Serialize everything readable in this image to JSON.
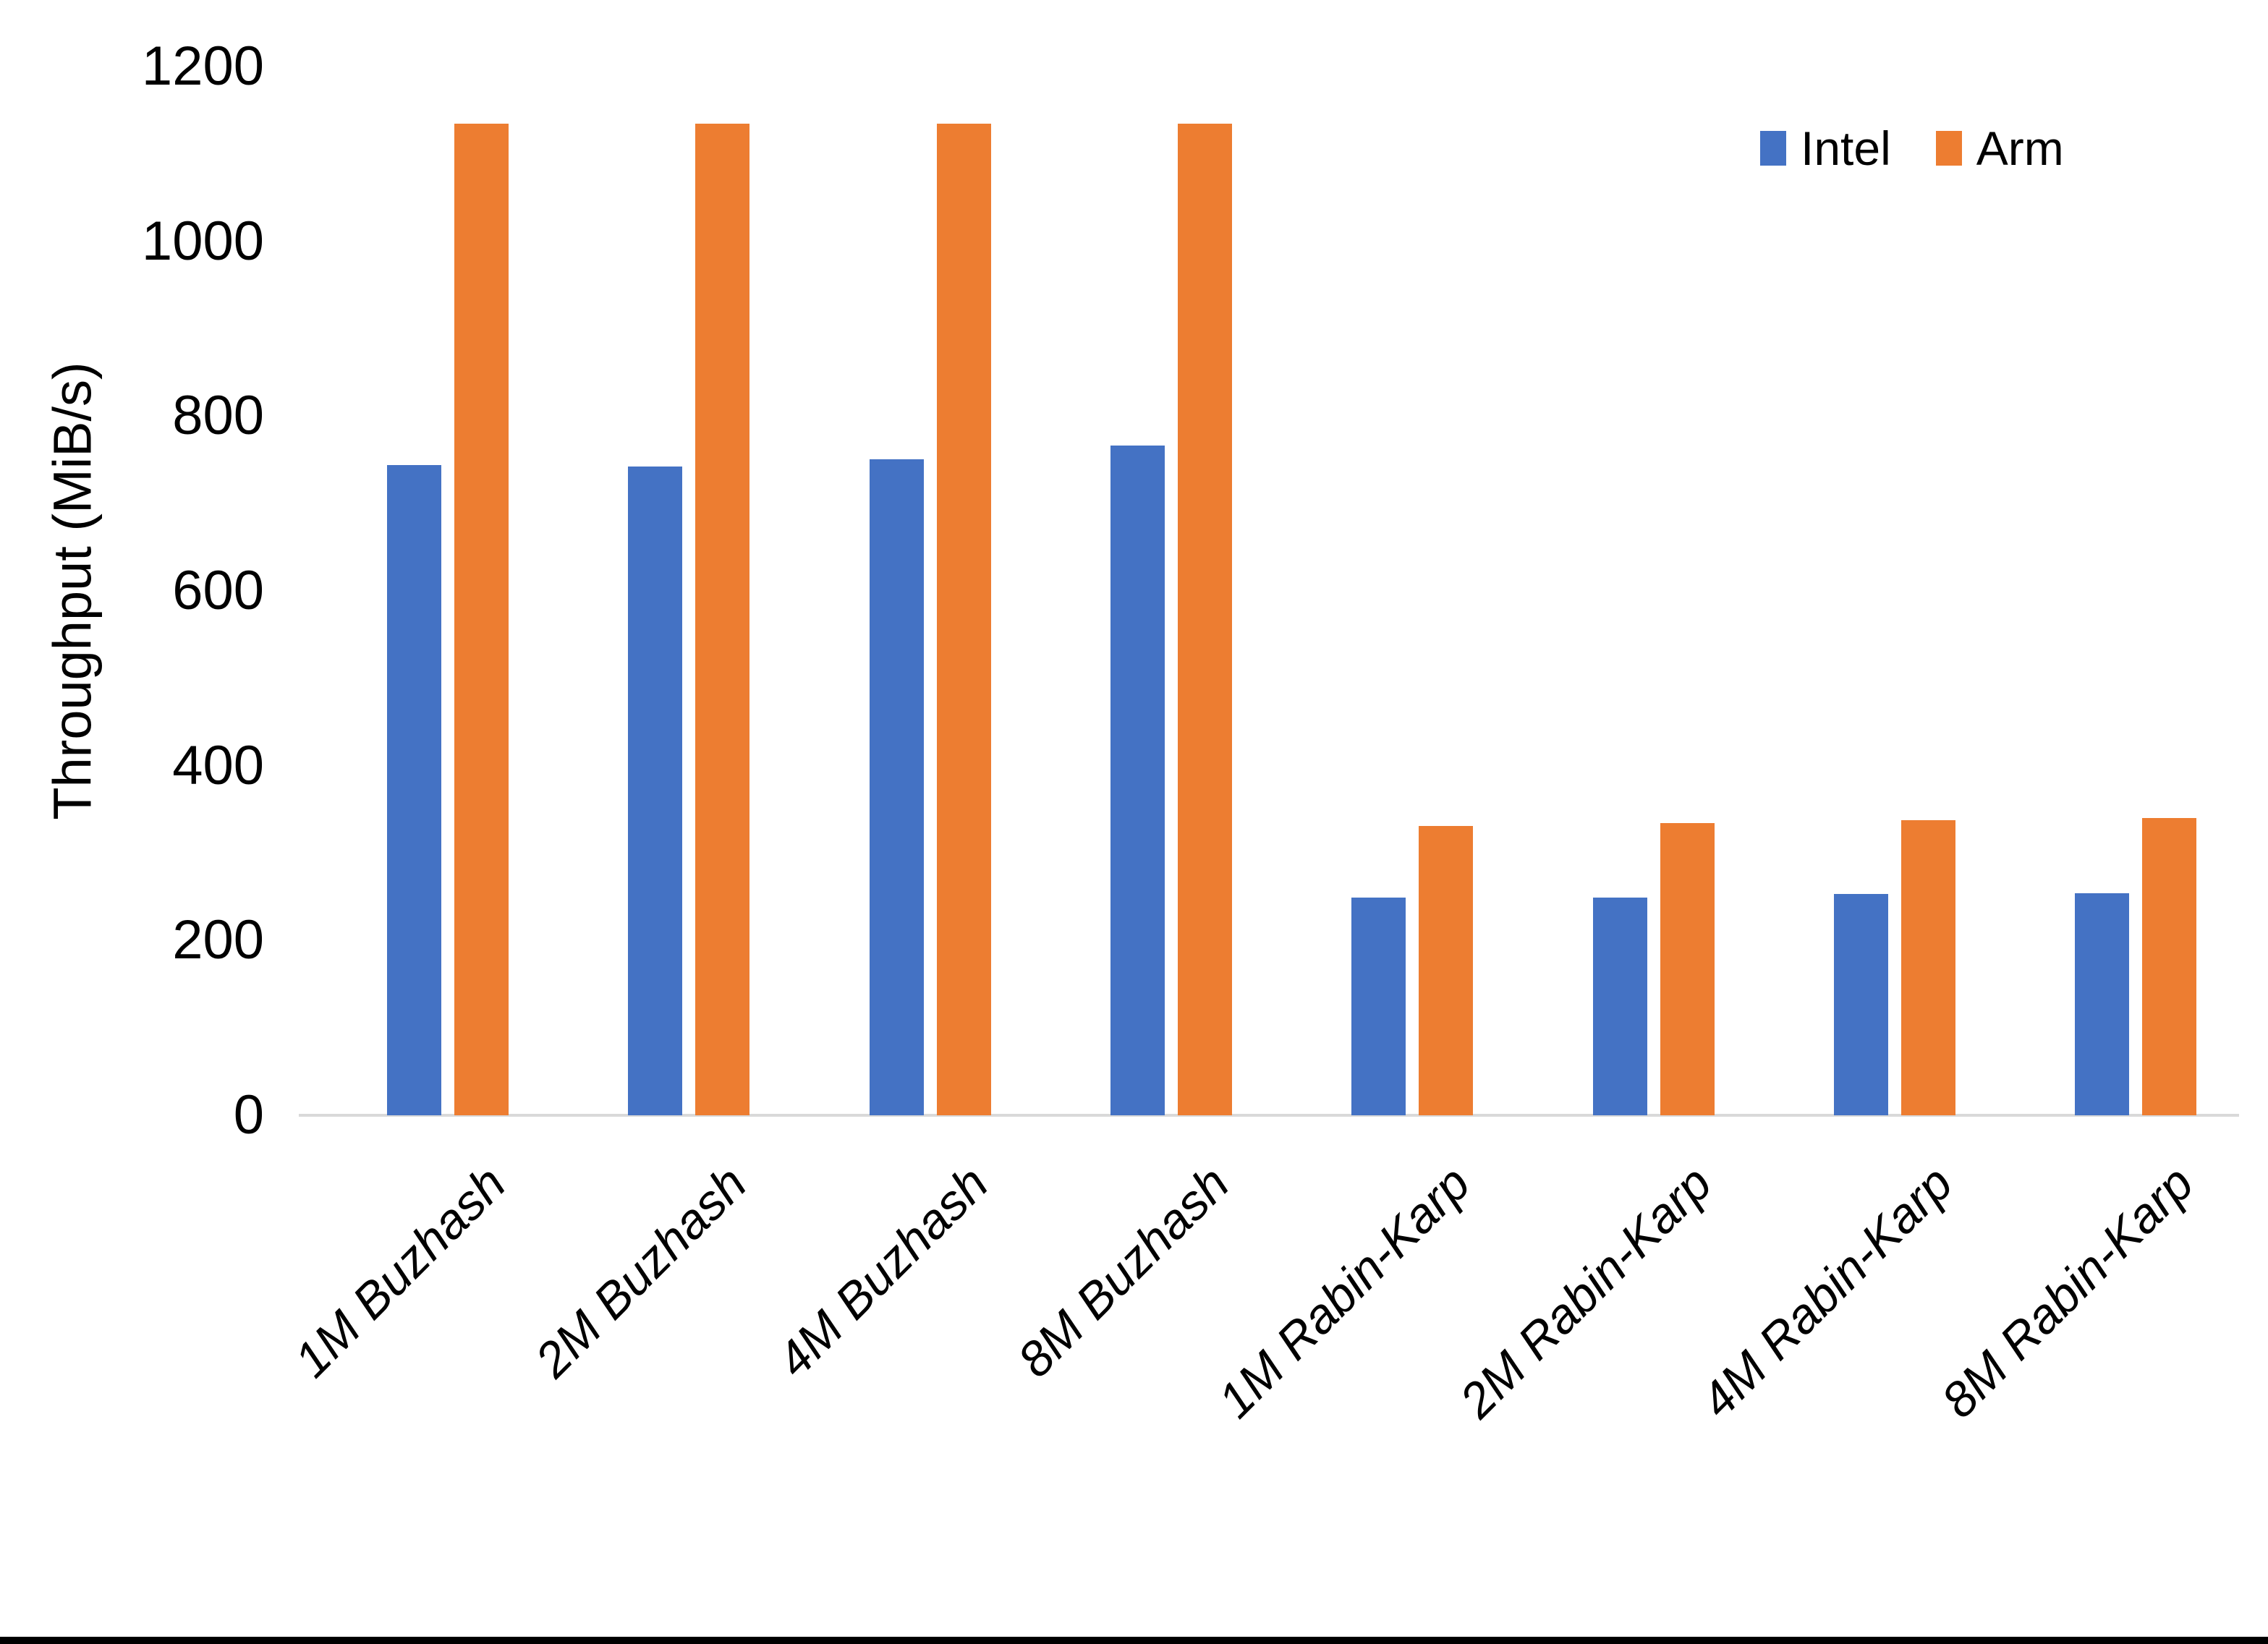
{
  "chart_data": {
    "type": "bar",
    "categories": [
      "1M Buzhash",
      "2M Buzhash",
      "4M Buzhash",
      "8M Buzhash",
      "1M Rabin-Karp",
      "2M Rabin-Karp",
      "4M Rabin-Karp",
      "8M Rabin-Karp"
    ],
    "series": [
      {
        "name": "Intel",
        "color": "#4472C4",
        "values": [
          744,
          742,
          751,
          766,
          249,
          249,
          253,
          254
        ]
      },
      {
        "name": "Arm",
        "color": "#ED7D31",
        "values": [
          1135,
          1135,
          1135,
          1135,
          331,
          334,
          338,
          340
        ]
      }
    ],
    "title": "",
    "xlabel": "",
    "ylabel": "Throughput (MiB/s)",
    "ylim": [
      0,
      1200
    ],
    "yticks": [
      0,
      200,
      400,
      600,
      800,
      1000,
      1200
    ],
    "grid": false,
    "legend_position": "top-right",
    "colors": {
      "axis_line": "#D9D9D9",
      "text": "#000000",
      "background": "#FFFFFF",
      "bottom_border": "#000000"
    }
  }
}
